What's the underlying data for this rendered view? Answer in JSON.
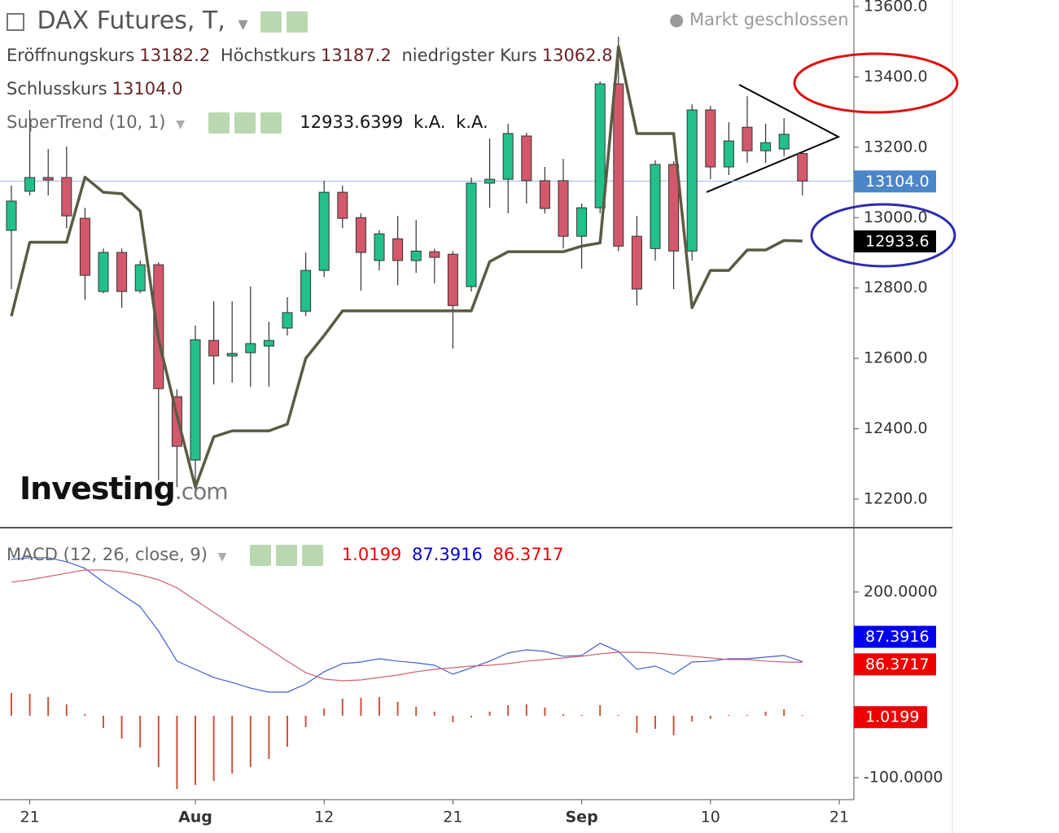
{
  "chart_data": [
    {
      "type": "candlestick",
      "title": "DAX Futures, T,",
      "status": "Markt geschlossen",
      "legend": [
        {
          "label": "Eröffnungskurs",
          "value": "13182.2"
        },
        {
          "label": "Höchstkurs",
          "value": "13187.2"
        },
        {
          "label": "niedrigster Kurs",
          "value": "13062.8"
        },
        {
          "label": "Schlusskurs",
          "value": "13104.0"
        }
      ],
      "indicator": {
        "label": "SuperTrend (10, 1)",
        "values": [
          "12933.6399",
          "k.A.",
          "k.A."
        ]
      },
      "watermark": [
        "Investing",
        ".com"
      ],
      "up_color": "#22c08a",
      "down_color": "#d4586c",
      "open": [
        12964,
        13075,
        13114,
        13114,
        12998,
        12790,
        12901,
        12792,
        12866,
        12491,
        12311,
        12651,
        12607,
        12616,
        12635,
        12686,
        12734,
        12850,
        13072,
        13000,
        12878,
        12940,
        12878,
        12903,
        12896,
        12804,
        13098,
        13109,
        13232,
        13105,
        13105,
        12947,
        13028,
        13380,
        12947,
        12912,
        13151,
        12905,
        13306,
        13144,
        13257,
        13190,
        13195,
        13182.2,
        null,
        null
      ],
      "high": [
        13091,
        13306,
        13195,
        13202,
        13028,
        12912,
        12912,
        12878,
        12873,
        12512,
        12693,
        12762,
        12762,
        12804,
        12704,
        12774,
        12901,
        13105,
        13091,
        13012,
        12964,
        13005,
        12993,
        12912,
        12905,
        13114,
        13225,
        13267,
        13241,
        13144,
        13167,
        13040,
        13387,
        13514,
        13005,
        13163,
        13160,
        13322,
        13318,
        13271,
        13345,
        13267,
        13283,
        13187.2,
        null,
        null
      ],
      "low": [
        12797,
        13063,
        13063,
        12970,
        12767,
        12785,
        12744,
        12785,
        12253,
        12234,
        12222,
        12526,
        12531,
        12519,
        12519,
        12665,
        12720,
        12831,
        12970,
        12792,
        12850,
        12808,
        12843,
        12813,
        12628,
        12790,
        13028,
        13012,
        13040,
        13012,
        12912,
        12855,
        13012,
        12905,
        12750,
        12878,
        12797,
        12878,
        13109,
        13121,
        13156,
        13156,
        13174,
        13062.8,
        null,
        null
      ],
      "close": [
        13047,
        13114,
        13107,
        13005,
        12836,
        12901,
        12790,
        12866,
        12514,
        12350,
        12653,
        12607,
        12614,
        12642,
        12651,
        12730,
        12850,
        13072,
        12998,
        12901,
        12954,
        12878,
        12905,
        12887,
        12750,
        13098,
        13109,
        13239,
        13105,
        13026,
        12947,
        13028,
        13380,
        12919,
        12797,
        13151,
        12905,
        13306,
        13144,
        13218,
        13190,
        13213,
        13237,
        13104,
        null,
        null
      ],
      "series": [
        {
          "name": "SuperTrend (10, 1)",
          "color": "#5b5b45",
          "values": [
            12720,
            12930,
            12930,
            12930,
            13115,
            13072,
            13068,
            13019,
            12653,
            12438,
            12234,
            12377,
            12394,
            12394,
            12394,
            12413,
            12600,
            12665,
            12735,
            12735,
            12735,
            12735,
            12735,
            12735,
            12735,
            12735,
            12875,
            12903,
            12903,
            12903,
            12903,
            12919,
            12928,
            13486,
            13239,
            13239,
            13239,
            12744,
            12850,
            12850,
            12908,
            12908,
            12935,
            12933.6,
            null,
            null
          ]
        }
      ],
      "ylim": [
        12118.9,
        13618.5
      ],
      "yticks": [
        {
          "value": 12200,
          "label": "12200.0"
        },
        {
          "value": 12400,
          "label": "12400.0"
        },
        {
          "value": 12600,
          "label": "12600.0"
        },
        {
          "value": 12800,
          "label": "12800.0"
        },
        {
          "value": 13000,
          "label": "13000.0"
        },
        {
          "value": 13200,
          "label": "13200.0"
        },
        {
          "value": 13400,
          "label": "13400.0"
        },
        {
          "value": 13600,
          "label": "13600.0"
        }
      ],
      "last_value": {
        "value": 13104,
        "label": "13104.0",
        "color": "#4a86c8"
      },
      "series_last": {
        "value": 12933.6,
        "label": "12933.6",
        "color": "#000000"
      }
    },
    {
      "type": "macd",
      "indicator": {
        "label": "MACD (12, 26, close, 9)",
        "values": [
          "1.0199",
          "87.3916",
          "86.3717"
        ]
      },
      "categories": [
        null,
        "21",
        null,
        null,
        null,
        null,
        null,
        null,
        null,
        null,
        "Aug",
        null,
        null,
        null,
        null,
        null,
        null,
        "12",
        null,
        null,
        null,
        null,
        null,
        null,
        "21",
        null,
        null,
        null,
        null,
        null,
        null,
        "Sep",
        null,
        null,
        null,
        null,
        null,
        null,
        "10",
        null,
        null,
        null,
        null,
        null,
        null,
        "21"
      ],
      "series": [
        {
          "color": "#3f5fd0",
          "values": [
            252.6,
            255.3,
            255.3,
            248.7,
            238.2,
            215.8,
            196.1,
            176.3,
            136.8,
            88.2,
            75,
            61.8,
            53.9,
            44.7,
            38.2,
            38.2,
            51.3,
            71.1,
            84.2,
            86.8,
            92.1,
            88.2,
            85.5,
            81.6,
            67.1,
            77.6,
            88.2,
            101.3,
            106.6,
            103.9,
            96.1,
            97.4,
            117.1,
            103.9,
            75,
            80.3,
            67.1,
            86.8,
            88.2,
            92.1,
            92.1,
            94.7,
            97.4,
            87.3916,
            null,
            null
          ]
        },
        {
          "color": "#d06070",
          "values": [
            215.8,
            219.7,
            225,
            230.3,
            235.5,
            235.5,
            232.9,
            227.6,
            219.7,
            206.6,
            186.8,
            167.1,
            147.4,
            127.6,
            107.9,
            88.2,
            69.7,
            59.2,
            56.6,
            57.9,
            61.8,
            65.8,
            71.1,
            75,
            77.6,
            80.3,
            81.6,
            84.2,
            88.2,
            90.8,
            93.4,
            96.1,
            100,
            102.6,
            102.6,
            101.3,
            98.7,
            96.1,
            93.4,
            90.8,
            90.8,
            88.2,
            86.8,
            86.3717,
            null,
            null
          ]
        }
      ],
      "histogram": {
        "color": "#c8553d",
        "values": [
          36.8,
          35.6,
          30.3,
          18.4,
          2.7,
          -19.7,
          -36.8,
          -51.3,
          -82.9,
          -118.4,
          -111.8,
          -105.3,
          -93.5,
          -82.9,
          -69.7,
          -50,
          -18.4,
          11.9,
          27.6,
          28.9,
          30.3,
          22.4,
          14.4,
          6.6,
          -10.5,
          -2.7,
          6.6,
          17.1,
          18.4,
          13.1,
          2.7,
          1.3,
          17.1,
          1.3,
          -27.6,
          -21,
          -31.6,
          -9.3,
          -5.2,
          1.3,
          1.3,
          6.5,
          10.6,
          1.0199,
          null,
          null
        ]
      },
      "ylim": [
        -135.5,
        303.9
      ],
      "yticks": [
        {
          "value": 200,
          "label": "200.0000"
        },
        {
          "value": -100,
          "label": "-100.0000"
        }
      ],
      "last_labels": [
        {
          "value": 87.3916,
          "label": "87.3916",
          "color": "#0000ee"
        },
        {
          "value": 86.3717,
          "label": "86.3717",
          "color": "#ee0000"
        },
        {
          "value": 1.0199,
          "label": "1.0199",
          "color": "#ee0000"
        }
      ]
    }
  ]
}
